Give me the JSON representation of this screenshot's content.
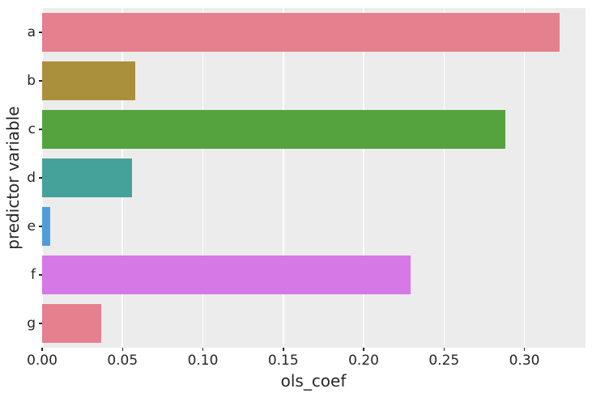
{
  "chart_data": {
    "type": "bar",
    "orientation": "horizontal",
    "title": "",
    "xlabel": "ols_coef",
    "ylabel": "predictor variable",
    "categories": [
      "a",
      "b",
      "c",
      "d",
      "e",
      "f",
      "g"
    ],
    "values": [
      0.322,
      0.058,
      0.288,
      0.056,
      0.005,
      0.229,
      0.037
    ],
    "bar_colors": [
      "#e5808e",
      "#aa8f3d",
      "#55a33f",
      "#45a29b",
      "#4f9ed9",
      "#d678e5",
      "#e5808e"
    ],
    "xlim": [
      0,
      0.338
    ],
    "xticks": [
      0.0,
      0.05,
      0.1,
      0.15,
      0.2,
      0.25,
      0.3
    ],
    "xtick_labels": [
      "0.00",
      "0.05",
      "0.10",
      "0.15",
      "0.20",
      "0.25",
      "0.30"
    ],
    "grid": true,
    "legend_position": "none",
    "plot_bg_color": "#ececec",
    "grid_color": "#ffffff",
    "text_color": "#262626"
  }
}
